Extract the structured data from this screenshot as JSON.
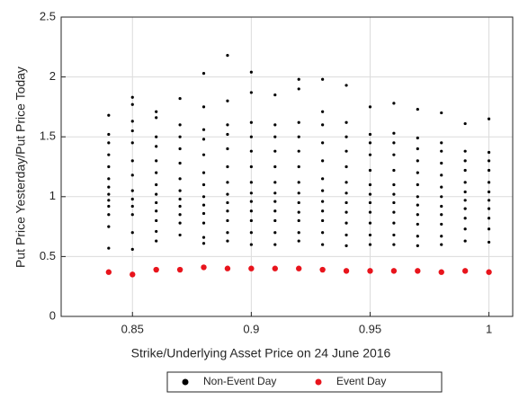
{
  "chart_data": {
    "type": "scatter",
    "x_label": "Strike/Underlying Asset Price on 24 June 2016",
    "y_label": "Put Price Yesterday/Put Price Today",
    "xlim": [
      0.82,
      1.01
    ],
    "xticks": [
      0.85,
      0.9,
      0.95,
      1
    ],
    "ylim": [
      0,
      2.5
    ],
    "yticks": [
      0,
      0.5,
      1,
      1.5,
      2,
      2.5
    ],
    "grid": true,
    "legend": "bottom-outside",
    "series": [
      {
        "name": "Non-Event Day",
        "color": "#000000",
        "x": [
          0.84,
          0.84,
          0.84,
          0.84,
          0.84,
          0.84,
          0.84,
          0.84,
          0.84,
          0.84,
          0.84,
          0.84,
          0.84,
          0.85,
          0.85,
          0.85,
          0.85,
          0.85,
          0.85,
          0.85,
          0.85,
          0.85,
          0.85,
          0.85,
          0.85,
          0.85,
          0.86,
          0.86,
          0.86,
          0.86,
          0.86,
          0.86,
          0.86,
          0.86,
          0.86,
          0.86,
          0.86,
          0.86,
          0.86,
          0.87,
          0.87,
          0.87,
          0.87,
          0.87,
          0.87,
          0.87,
          0.87,
          0.87,
          0.87,
          0.87,
          0.87,
          0.88,
          0.88,
          0.88,
          0.88,
          0.88,
          0.88,
          0.88,
          0.88,
          0.88,
          0.88,
          0.88,
          0.88,
          0.88,
          0.89,
          0.89,
          0.89,
          0.89,
          0.89,
          0.89,
          0.89,
          0.89,
          0.89,
          0.89,
          0.89,
          0.89,
          0.89,
          0.9,
          0.9,
          0.9,
          0.9,
          0.9,
          0.9,
          0.9,
          0.9,
          0.9,
          0.9,
          0.9,
          0.9,
          0.9,
          0.91,
          0.91,
          0.91,
          0.91,
          0.91,
          0.91,
          0.91,
          0.91,
          0.91,
          0.91,
          0.91,
          0.91,
          0.92,
          0.92,
          0.92,
          0.92,
          0.92,
          0.92,
          0.92,
          0.92,
          0.92,
          0.92,
          0.92,
          0.92,
          0.92,
          0.93,
          0.93,
          0.93,
          0.93,
          0.93,
          0.93,
          0.93,
          0.93,
          0.93,
          0.93,
          0.93,
          0.93,
          0.94,
          0.94,
          0.94,
          0.94,
          0.94,
          0.94,
          0.94,
          0.94,
          0.94,
          0.94,
          0.94,
          0.94,
          0.95,
          0.95,
          0.95,
          0.95,
          0.95,
          0.95,
          0.95,
          0.95,
          0.95,
          0.95,
          0.95,
          0.95,
          0.96,
          0.96,
          0.96,
          0.96,
          0.96,
          0.96,
          0.96,
          0.96,
          0.96,
          0.96,
          0.96,
          0.96,
          0.97,
          0.97,
          0.97,
          0.97,
          0.97,
          0.97,
          0.97,
          0.97,
          0.97,
          0.97,
          0.97,
          0.97,
          0.98,
          0.98,
          0.98,
          0.98,
          0.98,
          0.98,
          0.98,
          0.98,
          0.98,
          0.98,
          0.98,
          0.98,
          0.99,
          0.99,
          0.99,
          0.99,
          0.99,
          0.99,
          0.99,
          0.99,
          0.99,
          0.99,
          0.99,
          1,
          1,
          1,
          1,
          1,
          1,
          1,
          1,
          1,
          1,
          1
        ],
        "values": [
          1.68,
          1.52,
          1.45,
          1.35,
          1.25,
          1.15,
          1.08,
          1.02,
          0.97,
          0.92,
          0.85,
          0.75,
          0.57,
          1.83,
          1.77,
          1.63,
          1.55,
          1.45,
          1.3,
          1.18,
          1.05,
          0.98,
          0.92,
          0.85,
          0.7,
          0.56,
          1.71,
          1.66,
          1.5,
          1.42,
          1.3,
          1.2,
          1.1,
          1.02,
          0.95,
          0.88,
          0.8,
          0.71,
          0.63,
          1.82,
          1.6,
          1.5,
          1.4,
          1.28,
          1.15,
          1.05,
          0.98,
          0.92,
          0.85,
          0.78,
          0.68,
          2.03,
          1.75,
          1.56,
          1.48,
          1.35,
          1.2,
          1.1,
          1.0,
          0.93,
          0.86,
          0.78,
          0.66,
          0.61,
          2.18,
          1.8,
          1.6,
          1.52,
          1.4,
          1.25,
          1.12,
          1.02,
          0.95,
          0.88,
          0.8,
          0.7,
          0.63,
          2.04,
          1.87,
          1.62,
          1.5,
          1.38,
          1.25,
          1.12,
          1.03,
          0.96,
          0.88,
          0.8,
          0.7,
          0.6,
          1.85,
          1.6,
          1.5,
          1.38,
          1.25,
          1.12,
          1.03,
          0.96,
          0.88,
          0.8,
          0.7,
          0.6,
          1.98,
          1.9,
          1.62,
          1.5,
          1.38,
          1.25,
          1.12,
          1.03,
          0.95,
          0.87,
          0.8,
          0.7,
          0.63,
          1.98,
          1.71,
          1.6,
          1.45,
          1.3,
          1.15,
          1.05,
          0.96,
          0.88,
          0.8,
          0.7,
          0.6,
          1.93,
          1.62,
          1.5,
          1.38,
          1.25,
          1.12,
          1.03,
          0.95,
          0.87,
          0.78,
          0.68,
          0.59,
          1.75,
          1.52,
          1.45,
          1.35,
          1.22,
          1.1,
          1.02,
          0.95,
          0.87,
          0.78,
          0.68,
          0.6,
          1.78,
          1.53,
          1.45,
          1.35,
          1.22,
          1.1,
          1.02,
          0.95,
          0.87,
          0.78,
          0.68,
          0.6,
          1.73,
          1.49,
          1.4,
          1.3,
          1.2,
          1.1,
          1.0,
          0.93,
          0.85,
          0.77,
          0.67,
          0.59,
          1.7,
          1.45,
          1.38,
          1.28,
          1.18,
          1.08,
          1.0,
          0.92,
          0.85,
          0.77,
          0.67,
          0.6,
          1.61,
          1.38,
          1.3,
          1.22,
          1.12,
          1.04,
          0.97,
          0.9,
          0.82,
          0.73,
          0.63,
          1.65,
          1.37,
          1.3,
          1.22,
          1.12,
          1.04,
          0.97,
          0.9,
          0.82,
          0.73,
          0.62
        ]
      },
      {
        "name": "Event Day",
        "color": "#e8141c",
        "x": [
          0.84,
          0.85,
          0.86,
          0.87,
          0.88,
          0.89,
          0.9,
          0.91,
          0.92,
          0.93,
          0.94,
          0.95,
          0.96,
          0.97,
          0.98,
          0.99,
          1
        ],
        "values": [
          0.37,
          0.35,
          0.39,
          0.39,
          0.41,
          0.4,
          0.4,
          0.4,
          0.4,
          0.39,
          0.38,
          0.38,
          0.38,
          0.38,
          0.37,
          0.38,
          0.37
        ]
      }
    ]
  }
}
